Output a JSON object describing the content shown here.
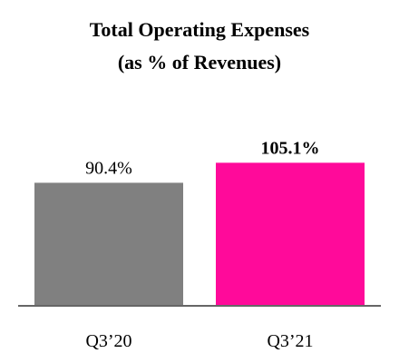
{
  "chart_data": {
    "type": "bar",
    "title_lines": [
      "Total Operating Expenses",
      "(as % of Revenues)"
    ],
    "categories": [
      "Q3’20",
      "Q3’21"
    ],
    "values": [
      90.4,
      105.1
    ],
    "value_labels": [
      "90.4%",
      "105.1%"
    ],
    "value_label_bold": [
      false,
      true
    ],
    "colors": [
      "#808080",
      "#ff0a9a"
    ],
    "axis_color": "#666666",
    "ylim": [
      0,
      120
    ],
    "grid": false,
    "legend": "none"
  }
}
